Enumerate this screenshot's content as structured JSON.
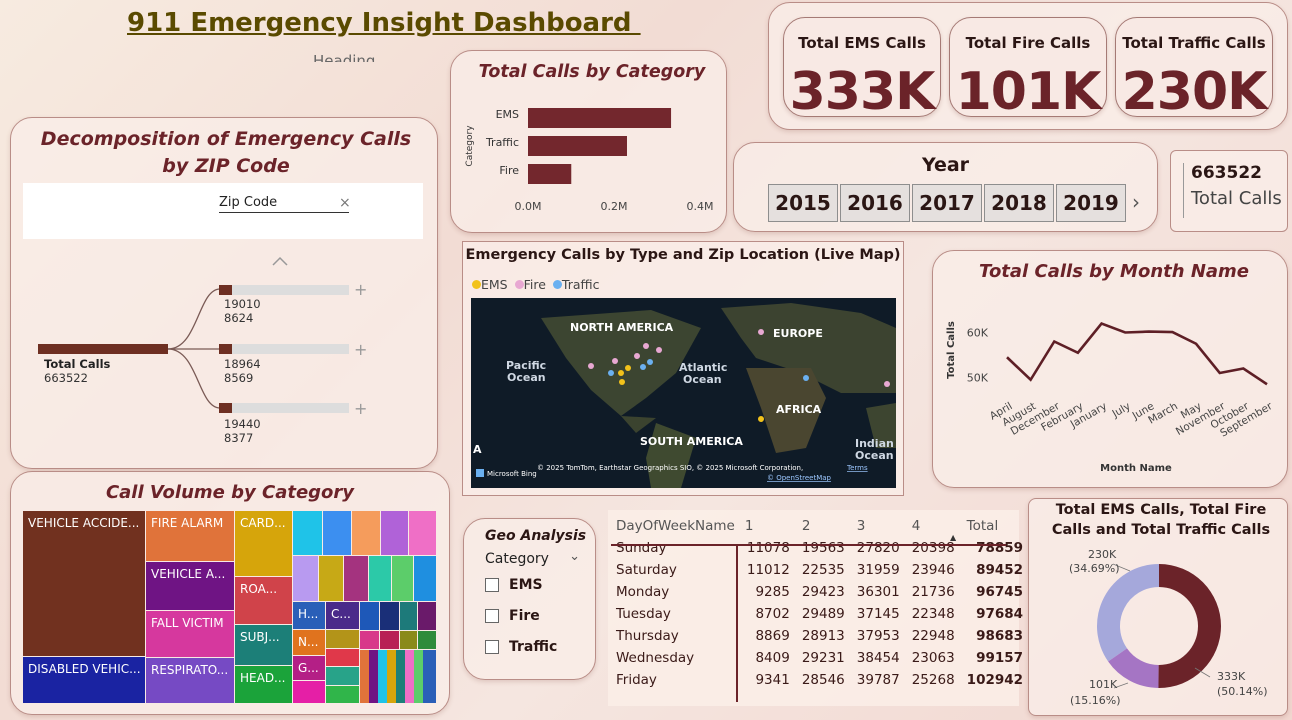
{
  "header": {
    "title": "911 Emergency Insight Dashboard ",
    "subtitle": "Heading"
  },
  "kpis": [
    {
      "label": "Total EMS Calls",
      "value": "333K"
    },
    {
      "label": "Total Fire Calls",
      "value": "101K"
    },
    {
      "label": "Total Traffic Calls",
      "value": "230K"
    }
  ],
  "total_card": {
    "value": "663522",
    "label": "Total Calls"
  },
  "year_slicer": {
    "title": "Year",
    "years": [
      "2015",
      "2016",
      "2017",
      "2018",
      "2019"
    ]
  },
  "category_bar": {
    "title": "Total Calls by Category",
    "axis_label": "Category",
    "ticks": [
      "0.0M",
      "0.2M",
      "0.4M"
    ]
  },
  "decomposition": {
    "title": "Decomposition of Emergency Calls by ZIP Code",
    "field": "Zip Code",
    "root_label": "Total Calls",
    "root_value": "663522",
    "nodes": [
      {
        "zip": "19010",
        "value": "8624"
      },
      {
        "zip": "18964",
        "value": "8569"
      },
      {
        "zip": "19440",
        "value": "8377"
      }
    ]
  },
  "map": {
    "title": "Emergency Calls by Type and Zip Location (Live Map)",
    "legend": [
      "EMS",
      "Fire",
      "Traffic"
    ],
    "labels": {
      "na": "NORTH AMERICA",
      "eu": "EUROPE",
      "pac1": "Pacific",
      "pac2": "Ocean",
      "atl1": "Atlantic",
      "atl2": "Ocean",
      "af": "AFRICA",
      "sa": "SOUTH AMERICA",
      "ind1": "Indian",
      "ind2": "Ocean",
      "a": "A"
    },
    "credit": "© 2025 TomTom, Earthstar Geographics SIO, © 2025 Microsoft Corporation,",
    "terms": "Terms",
    "osm": "© OpenStreetMap",
    "bing": "Microsoft Bing"
  },
  "month_chart": {
    "title": "Total Calls by Month Name",
    "ylabel": "Total Calls",
    "xlabel": "Month Name"
  },
  "treemap": {
    "title": "Call Volume by Category",
    "labels": [
      "VEHICLE ACCIDE...",
      "DISABLED VEHIC...",
      "FIRE ALARM",
      "VEHICLE A...",
      "FALL VICTIM",
      "RESPIRATO...",
      "CARD...",
      "ROA...",
      "SUBJ...",
      "HEAD...",
      "H...",
      "C...",
      "N...",
      "G..."
    ]
  },
  "geo": {
    "title": "Geo Analysis",
    "field": "Category",
    "options": [
      "EMS",
      "Fire",
      "Traffic"
    ]
  },
  "matrix": {
    "headers": [
      "DayOfWeekName",
      "1",
      "2",
      "3",
      "4",
      "Total"
    ],
    "rows": [
      [
        "Sunday",
        "11078",
        "19563",
        "27820",
        "20398",
        "78859"
      ],
      [
        "Saturday",
        "11012",
        "22535",
        "31959",
        "23946",
        "89452"
      ],
      [
        "Monday",
        "9285",
        "29423",
        "36301",
        "21736",
        "96745"
      ],
      [
        "Tuesday",
        "8702",
        "29489",
        "37145",
        "22348",
        "97684"
      ],
      [
        "Thursday",
        "8869",
        "28913",
        "37953",
        "22948",
        "98683"
      ],
      [
        "Wednesday",
        "8409",
        "29231",
        "38454",
        "23063",
        "99157"
      ],
      [
        "Friday",
        "9341",
        "28546",
        "39787",
        "25268",
        "102942"
      ]
    ]
  },
  "donut": {
    "title": "Total EMS Calls, Total Fire Calls and Total Traffic Calls",
    "labels": [
      {
        "value": "230K",
        "pct": "(34.69%)"
      },
      {
        "value": "333K",
        "pct": "(50.14%)"
      },
      {
        "value": "101K",
        "pct": "(15.16%)"
      }
    ]
  },
  "colors": {
    "maroon": "#6b2329",
    "ems": "#f2c21b",
    "fire": "#e8a8d2",
    "traffic": "#6bb0f0"
  },
  "chart_data": [
    {
      "type": "bar",
      "title": "Total Calls by Category",
      "categories": [
        "EMS",
        "Traffic",
        "Fire"
      ],
      "values": [
        332692,
        230208,
        100622
      ],
      "xlabel": "",
      "ylabel": "Category",
      "xlim": [
        0,
        400000
      ]
    },
    {
      "type": "line",
      "title": "Total Calls by Month Name",
      "categories": [
        "April",
        "August",
        "December",
        "February",
        "January",
        "July",
        "June",
        "March",
        "May",
        "November",
        "October",
        "September"
      ],
      "values": [
        54500,
        49500,
        58000,
        55500,
        62000,
        60000,
        60200,
        60100,
        57500,
        51000,
        52000,
        48500
      ],
      "xlabel": "Month Name",
      "ylabel": "Total Calls",
      "ylim": [
        45000,
        65000
      ],
      "yticks": [
        "60K",
        "50K"
      ]
    },
    {
      "type": "pie",
      "title": "Total EMS Calls, Total Fire Calls and Total Traffic Calls",
      "categories": [
        "Total EMS Calls",
        "Total Fire Calls",
        "Total Traffic Calls"
      ],
      "values": [
        332692,
        100622,
        230208
      ]
    }
  ]
}
